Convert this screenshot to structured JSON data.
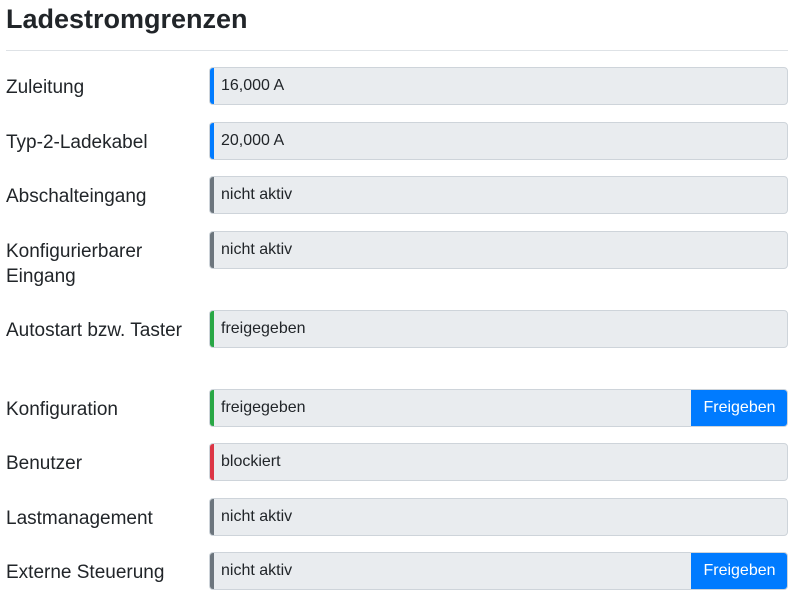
{
  "page": {
    "title": "Ladestromgrenzen"
  },
  "rows": [
    {
      "label": "Zuleitung",
      "value": "16,000 A",
      "status_color": "#007bff"
    },
    {
      "label": "Typ-2-Ladekabel",
      "value": "20,000 A",
      "status_color": "#007bff"
    },
    {
      "label": "Abschalteingang",
      "value": "nicht aktiv",
      "status_color": "#6c757d"
    },
    {
      "label": "Konfigurierbarer Eingang",
      "value": "nicht aktiv",
      "status_color": "#6c757d"
    },
    {
      "label": "Autostart bzw. Taster",
      "value": "freigegeben",
      "status_color": "#28a745"
    },
    {
      "label": "Konfiguration",
      "value": "freigegeben",
      "status_color": "#28a745",
      "button_label": "Freigeben"
    },
    {
      "label": "Benutzer",
      "value": "blockiert",
      "status_color": "#dc3545"
    },
    {
      "label": "Lastmanagement",
      "value": "nicht aktiv",
      "status_color": "#6c757d"
    },
    {
      "label": "Externe Steuerung",
      "value": "nicht aktiv",
      "status_color": "#6c757d",
      "button_label": "Freigeben"
    }
  ],
  "colors": {
    "accent": "#007bff",
    "inactive": "#6c757d",
    "enabled": "#28a745",
    "blocked": "#dc3545",
    "field_background": "#e9ecef"
  }
}
